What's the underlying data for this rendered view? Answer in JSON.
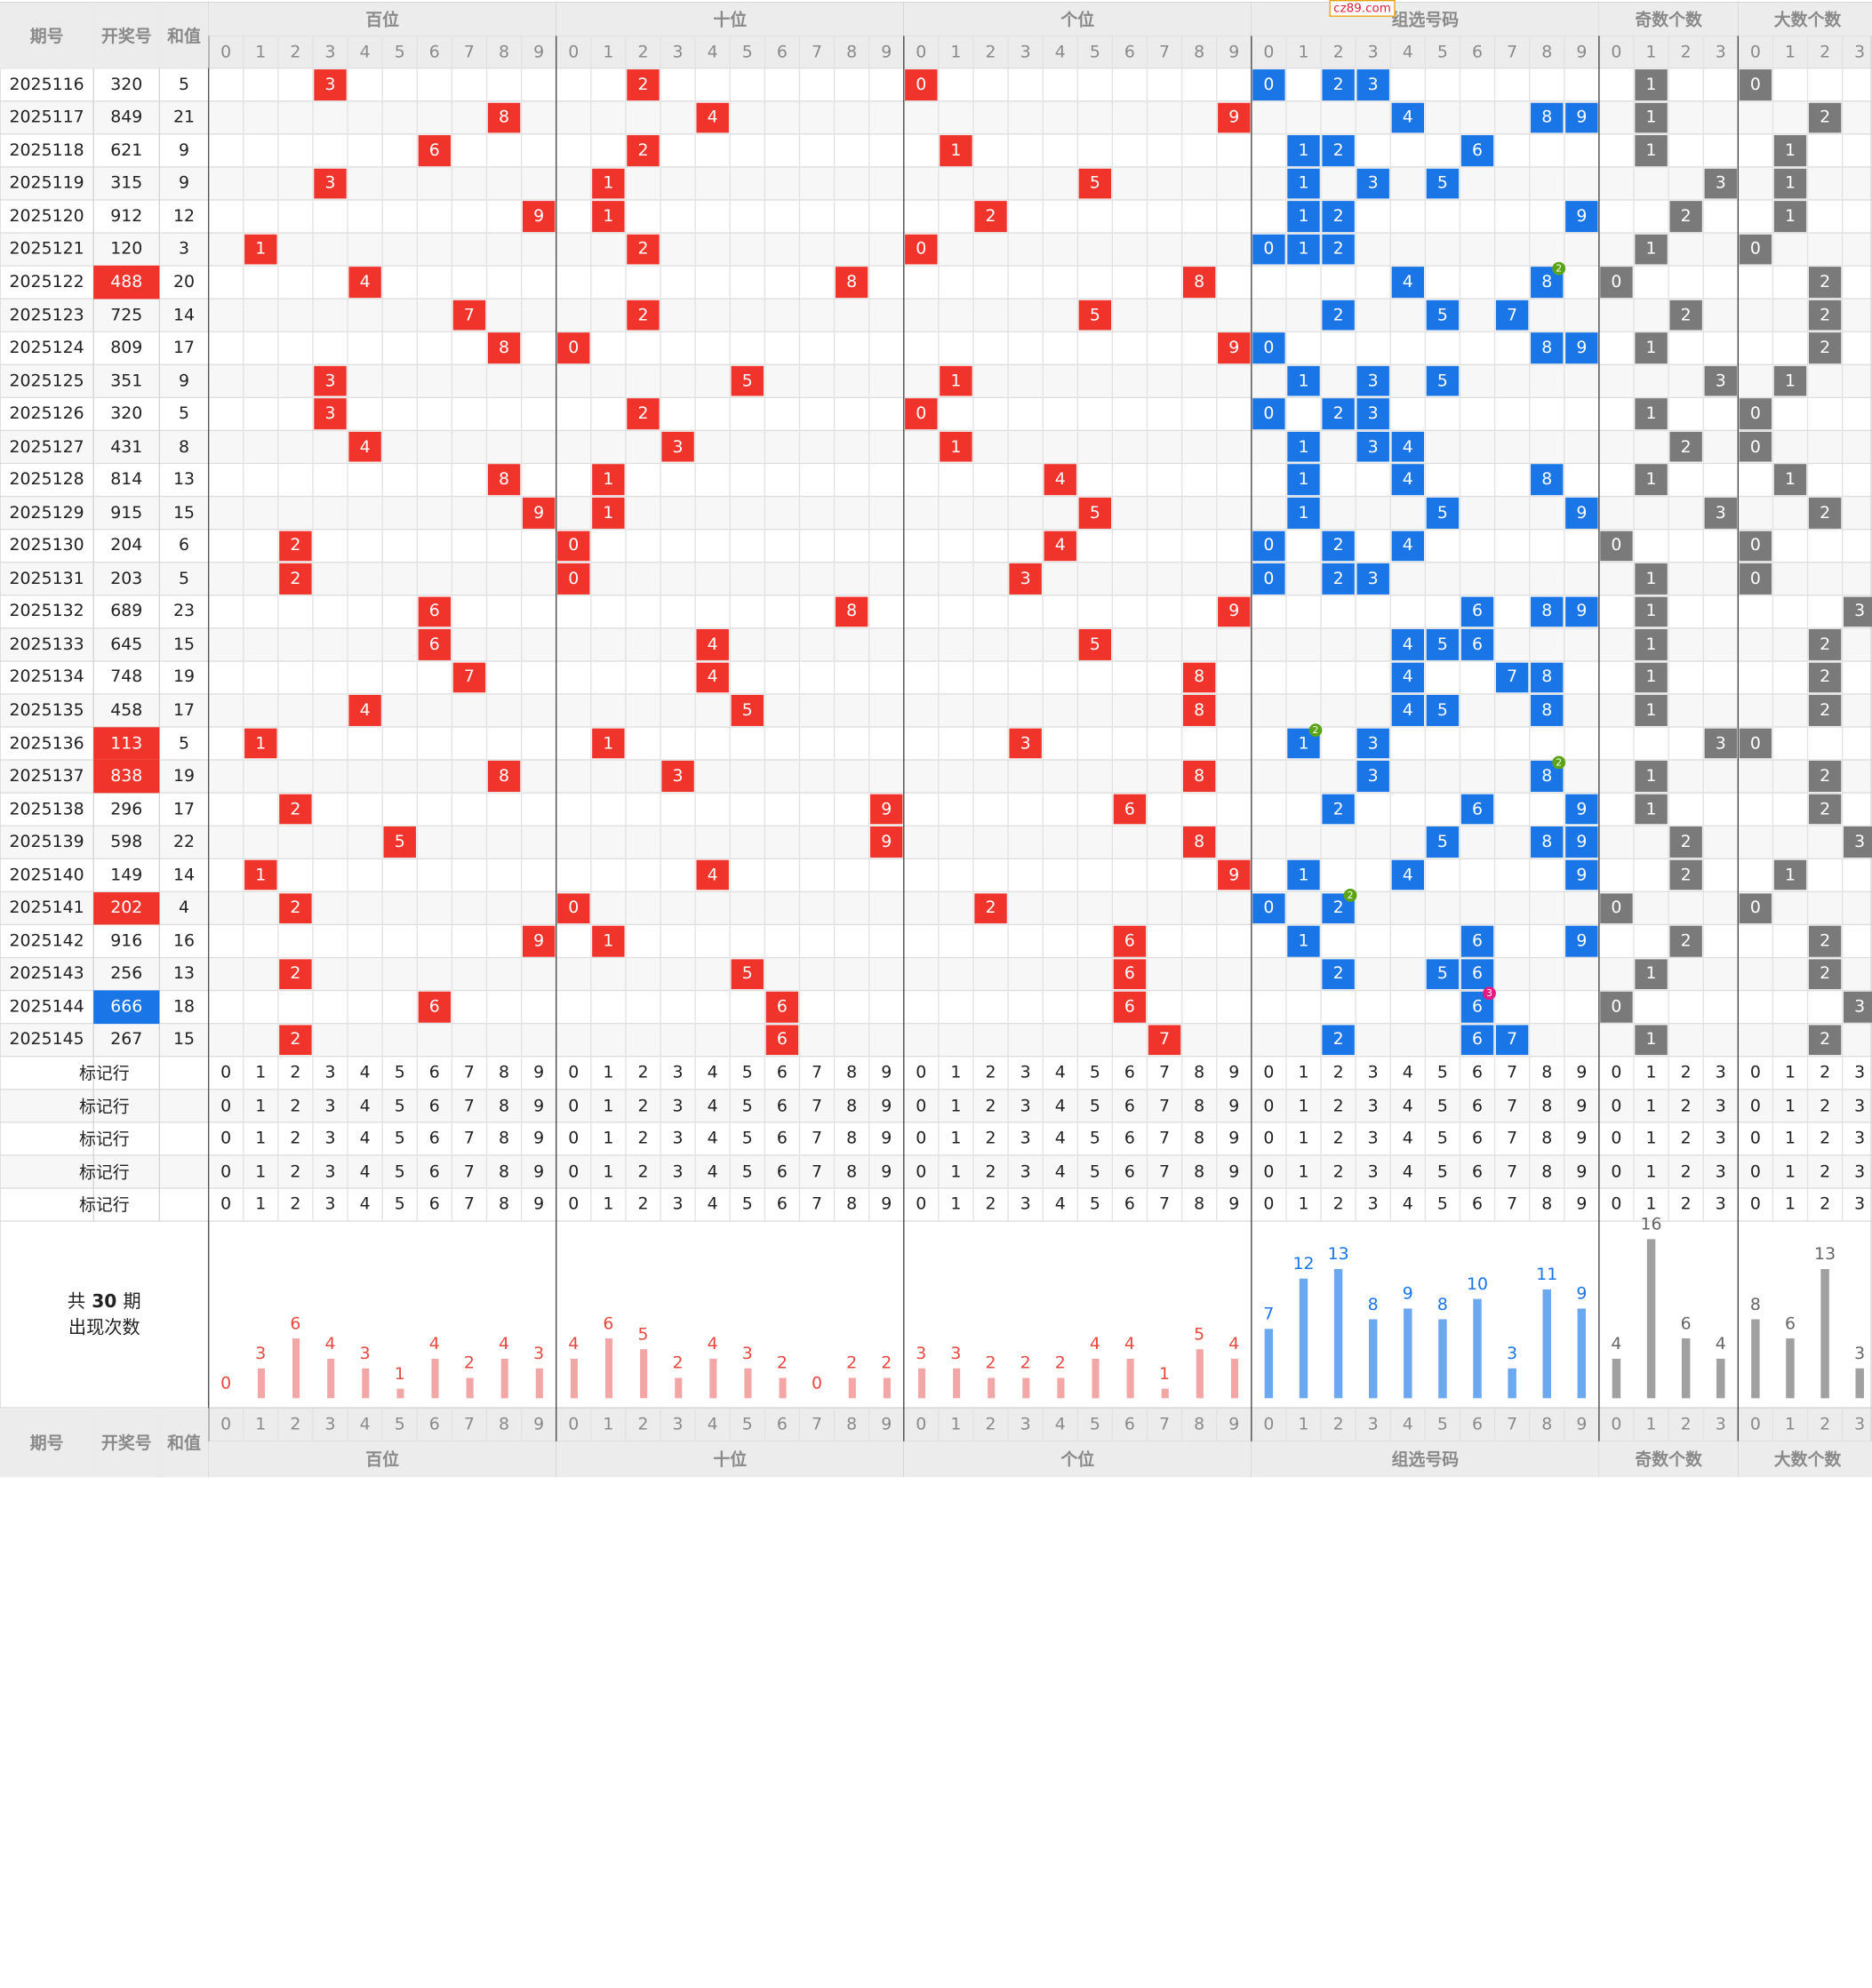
{
  "logo": "cz89.com",
  "header": {
    "period": "期号",
    "draw": "开奖号",
    "sum": "和值",
    "groups": [
      "百位",
      "十位",
      "个位",
      "组选号码",
      "奇数个数",
      "大数个数"
    ]
  },
  "digits10": [
    "0",
    "1",
    "2",
    "3",
    "4",
    "5",
    "6",
    "7",
    "8",
    "9"
  ],
  "digits4": [
    "0",
    "1",
    "2",
    "3"
  ],
  "rows": [
    {
      "period": "2025116",
      "draw": "320",
      "sum": "5",
      "hi": ""
    },
    {
      "period": "2025117",
      "draw": "849",
      "sum": "21",
      "hi": ""
    },
    {
      "period": "2025118",
      "draw": "621",
      "sum": "9",
      "hi": ""
    },
    {
      "period": "2025119",
      "draw": "315",
      "sum": "9",
      "hi": ""
    },
    {
      "period": "2025120",
      "draw": "912",
      "sum": "12",
      "hi": ""
    },
    {
      "period": "2025121",
      "draw": "120",
      "sum": "3",
      "hi": ""
    },
    {
      "period": "2025122",
      "draw": "488",
      "sum": "20",
      "hi": "red"
    },
    {
      "period": "2025123",
      "draw": "725",
      "sum": "14",
      "hi": ""
    },
    {
      "period": "2025124",
      "draw": "809",
      "sum": "17",
      "hi": ""
    },
    {
      "period": "2025125",
      "draw": "351",
      "sum": "9",
      "hi": ""
    },
    {
      "period": "2025126",
      "draw": "320",
      "sum": "5",
      "hi": ""
    },
    {
      "period": "2025127",
      "draw": "431",
      "sum": "8",
      "hi": ""
    },
    {
      "period": "2025128",
      "draw": "814",
      "sum": "13",
      "hi": ""
    },
    {
      "period": "2025129",
      "draw": "915",
      "sum": "15",
      "hi": ""
    },
    {
      "period": "2025130",
      "draw": "204",
      "sum": "6",
      "hi": ""
    },
    {
      "period": "2025131",
      "draw": "203",
      "sum": "5",
      "hi": ""
    },
    {
      "period": "2025132",
      "draw": "689",
      "sum": "23",
      "hi": ""
    },
    {
      "period": "2025133",
      "draw": "645",
      "sum": "15",
      "hi": ""
    },
    {
      "period": "2025134",
      "draw": "748",
      "sum": "19",
      "hi": ""
    },
    {
      "period": "2025135",
      "draw": "458",
      "sum": "17",
      "hi": ""
    },
    {
      "period": "2025136",
      "draw": "113",
      "sum": "5",
      "hi": "red"
    },
    {
      "period": "2025137",
      "draw": "838",
      "sum": "19",
      "hi": "red"
    },
    {
      "period": "2025138",
      "draw": "296",
      "sum": "17",
      "hi": ""
    },
    {
      "period": "2025139",
      "draw": "598",
      "sum": "22",
      "hi": ""
    },
    {
      "period": "2025140",
      "draw": "149",
      "sum": "14",
      "hi": ""
    },
    {
      "period": "2025141",
      "draw": "202",
      "sum": "4",
      "hi": "red"
    },
    {
      "period": "2025142",
      "draw": "916",
      "sum": "16",
      "hi": ""
    },
    {
      "period": "2025143",
      "draw": "256",
      "sum": "13",
      "hi": ""
    },
    {
      "period": "2025144",
      "draw": "666",
      "sum": "18",
      "hi": "blue"
    },
    {
      "period": "2025145",
      "draw": "267",
      "sum": "15",
      "hi": ""
    }
  ],
  "mark_rows": [
    "标记行",
    "标记行",
    "标记行",
    "标记行",
    "标记行"
  ],
  "stats": {
    "label_prefix": "共",
    "period_count": "30",
    "label_suffix": "期",
    "label_line2": "出现次数",
    "hundreds": [
      0,
      3,
      6,
      4,
      3,
      1,
      4,
      2,
      4,
      3
    ],
    "tens": [
      4,
      6,
      5,
      2,
      4,
      3,
      2,
      0,
      2,
      2
    ],
    "units": [
      3,
      3,
      2,
      2,
      2,
      4,
      4,
      1,
      5,
      4
    ],
    "group": [
      7,
      12,
      13,
      8,
      9,
      8,
      10,
      3,
      11,
      9
    ],
    "odd_count": [
      4,
      16,
      6,
      4
    ],
    "big_count": [
      8,
      6,
      13,
      3
    ]
  },
  "repeat_badges": [
    {
      "row": 6,
      "digit": 8,
      "count": "2"
    },
    {
      "row": 20,
      "digit": 1,
      "count": "2"
    },
    {
      "row": 21,
      "digit": 8,
      "count": "2"
    },
    {
      "row": 25,
      "digit": 2,
      "count": "2"
    },
    {
      "row": 28,
      "digit": 6,
      "count": "3"
    }
  ],
  "colors": {
    "red": "#f0342c",
    "blue": "#1a76e6",
    "gray": "#7a7a7a",
    "header_bg": "#ececec",
    "alt_row": "#f7f7f7"
  }
}
